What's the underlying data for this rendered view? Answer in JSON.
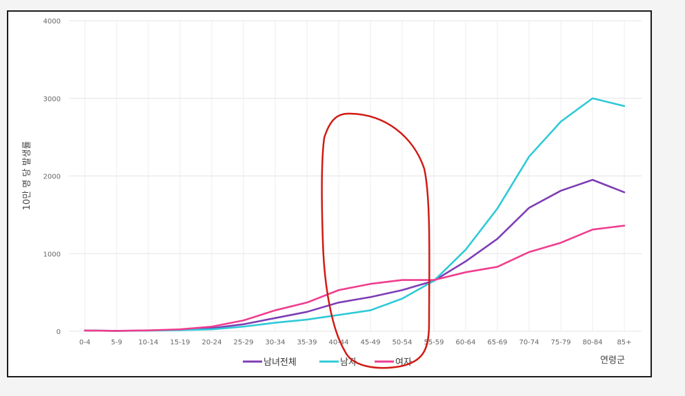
{
  "chart_data": {
    "type": "line",
    "title": "",
    "xlabel": "연령군",
    "ylabel": "10만 명 당 발생률",
    "categories": [
      "0-4",
      "5-9",
      "10-14",
      "15-19",
      "20-24",
      "25-29",
      "30-34",
      "35-39",
      "40-44",
      "45-49",
      "50-54",
      "55-59",
      "60-64",
      "65-69",
      "70-74",
      "75-79",
      "80-84",
      "85+"
    ],
    "ylim": [
      0,
      4000
    ],
    "yticks": [
      0,
      1000,
      2000,
      3000,
      4000
    ],
    "grid": true,
    "legend_position": "bottom",
    "series": [
      {
        "name": "남녀전체",
        "color": "#7d3cb5",
        "values": [
          10,
          5,
          10,
          20,
          40,
          90,
          170,
          250,
          370,
          440,
          530,
          650,
          900,
          1190,
          1590,
          1810,
          1950,
          1790
        ]
      },
      {
        "name": "남자",
        "color": "#2ec9d8",
        "values": [
          10,
          5,
          8,
          15,
          25,
          60,
          110,
          150,
          210,
          270,
          420,
          650,
          1050,
          1580,
          2250,
          2700,
          3000,
          2900
        ]
      },
      {
        "name": "여자",
        "color": "#ef3d8e",
        "values": [
          10,
          5,
          12,
          25,
          60,
          140,
          270,
          370,
          530,
          610,
          660,
          660,
          760,
          830,
          1020,
          1140,
          1310,
          1360
        ]
      }
    ]
  }
}
